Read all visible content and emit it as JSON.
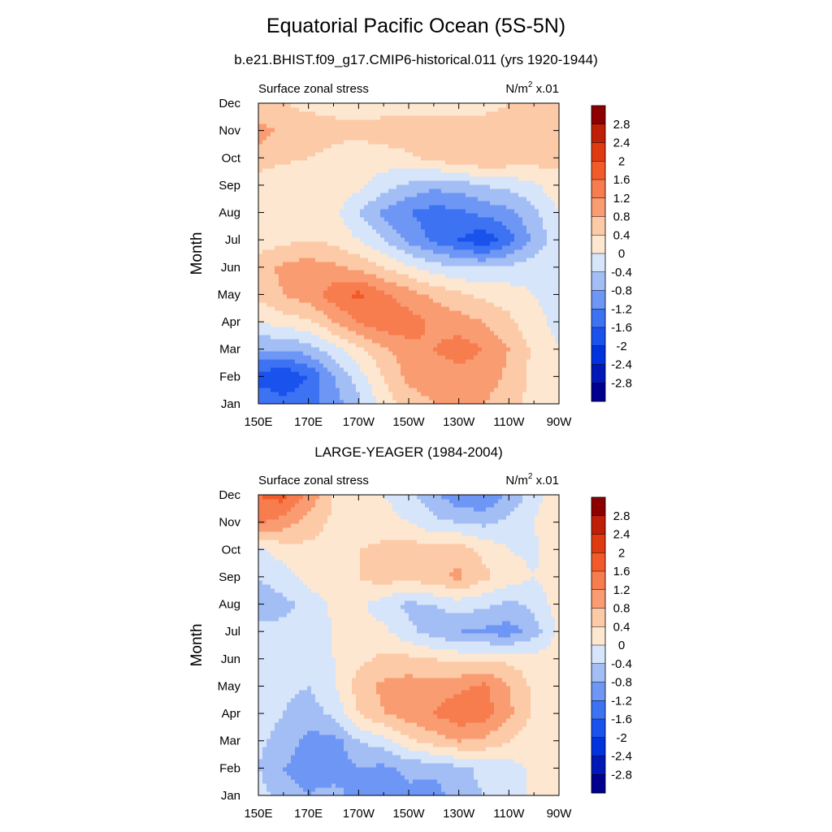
{
  "title": "Equatorial Pacific Ocean (5S-5N)",
  "colors": {
    "levels": [
      -2.8,
      -2.4,
      -2,
      -1.6,
      -1.2,
      -0.8,
      -0.4,
      0,
      0.4,
      0.8,
      1.2,
      1.6,
      2,
      2.4,
      2.8
    ],
    "fills": [
      "#00008f",
      "#0018b8",
      "#0033dd",
      "#1a52ee",
      "#3d73f3",
      "#6e97f5",
      "#a3bdf5",
      "#d6e5fa",
      "#fde7d0",
      "#fccaa7",
      "#fa9c72",
      "#f77d4f",
      "#f25a29",
      "#e03a12",
      "#bf1f07",
      "#8c0000"
    ]
  },
  "chart_data": [
    {
      "type": "heatmap",
      "title": "b.e21.BHIST.f09_g17.CMIP6-historical.011 (yrs 1920-1944)",
      "left_label": "Surface zonal stress",
      "units_base": "N/m",
      "units_exp": "2",
      "units_scale": "x.01",
      "ylabel": "Month",
      "x_ticks": [
        "150E",
        "170E",
        "170W",
        "150W",
        "130W",
        "110W",
        "90W"
      ],
      "y_ticks": [
        "Jan",
        "Feb",
        "Mar",
        "Apr",
        "May",
        "Jun",
        "Jul",
        "Aug",
        "Sep",
        "Oct",
        "Nov",
        "Dec"
      ],
      "colorbar_labels": [
        "2.8",
        "2.4",
        "2",
        "1.6",
        "1.2",
        "0.8",
        "0.4",
        "0",
        "-0.4",
        "-0.8",
        "-1.2",
        "-1.6",
        "-2",
        "-2.4",
        "-2.8"
      ],
      "x": [
        150,
        160,
        170,
        180,
        190,
        200,
        210,
        220,
        230,
        240,
        250,
        260,
        270
      ],
      "months": [
        "Jan",
        "Feb",
        "Mar",
        "Apr",
        "May",
        "Jun",
        "Jul",
        "Aug",
        "Sep",
        "Oct",
        "Nov",
        "Dec"
      ],
      "z": [
        [
          -1.2,
          -1.4,
          -1.3,
          -1.0,
          -0.5,
          0.2,
          0.6,
          0.8,
          0.9,
          0.8,
          0.6,
          0.2,
          0.1
        ],
        [
          -1.8,
          -2.0,
          -1.6,
          -0.8,
          -0.2,
          0.4,
          0.9,
          1.0,
          1.0,
          1.0,
          0.7,
          0.3,
          0.2
        ],
        [
          -0.8,
          -0.8,
          -0.6,
          -0.2,
          0.3,
          0.7,
          1.1,
          1.2,
          1.4,
          1.2,
          0.8,
          0.3,
          0.0
        ],
        [
          0.0,
          0.2,
          0.3,
          0.8,
          1.2,
          1.5,
          1.4,
          1.1,
          1.0,
          0.8,
          0.5,
          0.1,
          -0.1
        ],
        [
          0.5,
          0.8,
          1.0,
          1.4,
          1.7,
          1.3,
          1.0,
          0.7,
          0.5,
          0.3,
          0.2,
          0.0,
          -0.1
        ],
        [
          0.6,
          0.9,
          1.0,
          0.9,
          0.7,
          0.4,
          0.1,
          -0.2,
          -0.4,
          -0.4,
          -0.3,
          -0.2,
          -0.1
        ],
        [
          0.2,
          0.3,
          0.4,
          0.3,
          0.0,
          -0.4,
          -0.9,
          -1.3,
          -1.6,
          -1.9,
          -1.4,
          -0.7,
          -0.2
        ],
        [
          0.1,
          0.2,
          0.3,
          0.1,
          -0.4,
          -0.9,
          -1.2,
          -1.4,
          -1.3,
          -1.1,
          -0.9,
          -0.5,
          0.0
        ],
        [
          0.2,
          0.0,
          0.1,
          0.3,
          0.1,
          -0.2,
          -0.5,
          -0.7,
          -0.6,
          -0.4,
          -0.3,
          -0.1,
          0.3
        ],
        [
          0.6,
          0.5,
          0.4,
          0.3,
          0.2,
          0.2,
          0.3,
          0.5,
          0.7,
          0.8,
          0.7,
          0.6,
          0.5
        ],
        [
          1.0,
          0.7,
          0.6,
          0.5,
          0.5,
          0.6,
          0.7,
          0.8,
          0.8,
          0.7,
          0.7,
          0.7,
          0.6
        ],
        [
          0.4,
          0.4,
          0.3,
          0.3,
          0.2,
          0.2,
          0.1,
          0.0,
          0.0,
          0.2,
          0.4,
          0.5,
          0.5
        ]
      ]
    },
    {
      "type": "heatmap",
      "title": "LARGE-YEAGER (1984-2004)",
      "left_label": "Surface zonal stress",
      "units_base": "N/m",
      "units_exp": "2",
      "units_scale": "x.01",
      "ylabel": "Month",
      "x_ticks": [
        "150E",
        "170E",
        "170W",
        "150W",
        "130W",
        "110W",
        "90W"
      ],
      "y_ticks": [
        "Jan",
        "Feb",
        "Mar",
        "Apr",
        "May",
        "Jun",
        "Jul",
        "Aug",
        "Sep",
        "Oct",
        "Nov",
        "Dec"
      ],
      "colorbar_labels": [
        "2.8",
        "2.4",
        "2",
        "1.6",
        "1.2",
        "0.8",
        "0.4",
        "0",
        "-0.4",
        "-0.8",
        "-1.2",
        "-1.6",
        "-2",
        "-2.4",
        "-2.8"
      ],
      "x": [
        150,
        160,
        170,
        180,
        190,
        200,
        210,
        220,
        230,
        240,
        250,
        260,
        270
      ],
      "months": [
        "Jan",
        "Feb",
        "Mar",
        "Apr",
        "May",
        "Jun",
        "Jul",
        "Aug",
        "Sep",
        "Oct",
        "Nov",
        "Dec"
      ],
      "z": [
        [
          -0.2,
          -0.6,
          -0.8,
          -0.6,
          -1.0,
          -1.2,
          -0.9,
          -1.0,
          -0.6,
          -0.4,
          -0.2,
          0.1,
          0.2
        ],
        [
          -0.4,
          -0.8,
          -1.0,
          -1.1,
          -0.8,
          -0.9,
          -0.7,
          -0.7,
          -0.5,
          -0.3,
          -0.2,
          0.1,
          0.2
        ],
        [
          -0.3,
          -0.6,
          -0.9,
          -1.0,
          -0.4,
          -0.2,
          0.3,
          0.6,
          0.8,
          0.7,
          0.4,
          0.1,
          0.1
        ],
        [
          -0.2,
          -0.4,
          -0.6,
          -0.3,
          0.4,
          0.8,
          1.0,
          1.2,
          1.5,
          1.4,
          0.9,
          0.3,
          0.2
        ],
        [
          -0.2,
          -0.3,
          -0.4,
          -0.1,
          0.6,
          0.9,
          1.0,
          1.0,
          1.1,
          1.3,
          0.8,
          0.3,
          0.2
        ],
        [
          -0.2,
          -0.2,
          -0.2,
          0.0,
          0.3,
          0.5,
          0.5,
          0.4,
          0.3,
          0.3,
          0.3,
          0.2,
          0.2
        ],
        [
          -0.3,
          -0.3,
          -0.2,
          0.0,
          0.1,
          0.1,
          -0.3,
          -0.6,
          -0.8,
          -0.9,
          -1.0,
          -0.6,
          0.1
        ],
        [
          -0.6,
          -0.5,
          -0.3,
          0.1,
          0.1,
          -0.2,
          -0.5,
          -0.4,
          -0.2,
          -0.3,
          -0.5,
          -0.3,
          0.2
        ],
        [
          -0.4,
          -0.2,
          0.2,
          0.3,
          0.4,
          0.6,
          0.5,
          0.7,
          0.9,
          0.5,
          0.2,
          0.0,
          0.2
        ],
        [
          -0.1,
          0.2,
          0.3,
          0.3,
          0.4,
          0.5,
          0.6,
          0.6,
          0.6,
          0.3,
          0.0,
          -0.1,
          0.3
        ],
        [
          1.3,
          1.0,
          0.6,
          0.3,
          0.2,
          0.2,
          0.0,
          -0.3,
          -0.4,
          -0.5,
          -0.3,
          0.0,
          0.4
        ],
        [
          1.6,
          1.8,
          1.1,
          0.4,
          0.2,
          0.0,
          -0.3,
          -0.7,
          -1.1,
          -1.2,
          -0.7,
          -0.2,
          0.4
        ]
      ]
    }
  ]
}
